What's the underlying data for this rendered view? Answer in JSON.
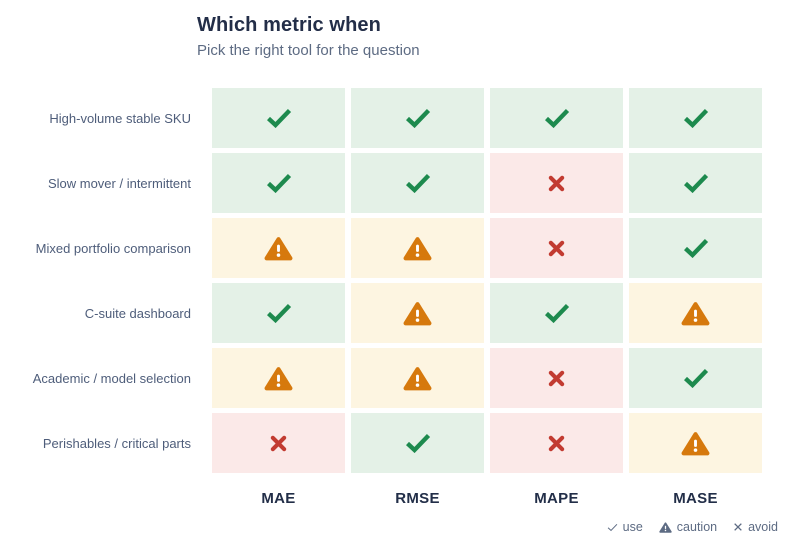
{
  "header": {
    "title": "Which metric when",
    "subtitle": "Pick the right tool for the question"
  },
  "chart_data": {
    "type": "heatmap",
    "title": "Which metric when",
    "subtitle": "Pick the right tool for the question",
    "columns": [
      "MAE",
      "RMSE",
      "MAPE",
      "MASE"
    ],
    "rows": [
      "High-volume stable SKU",
      "Slow mover / intermittent",
      "Mixed portfolio comparison",
      "C-suite dashboard",
      "Academic / model selection",
      "Perishables / critical parts"
    ],
    "values": [
      [
        "use",
        "use",
        "use",
        "use"
      ],
      [
        "use",
        "use",
        "avoid",
        "use"
      ],
      [
        "caution",
        "caution",
        "avoid",
        "use"
      ],
      [
        "use",
        "caution",
        "use",
        "caution"
      ],
      [
        "caution",
        "caution",
        "avoid",
        "use"
      ],
      [
        "avoid",
        "use",
        "avoid",
        "caution"
      ]
    ],
    "legend": [
      {
        "symbol": "check",
        "label": "use"
      },
      {
        "symbol": "triangle",
        "label": "caution"
      },
      {
        "symbol": "cross",
        "label": "avoid"
      }
    ],
    "legend_position": "bottom-right",
    "colors": {
      "use_bg": "#e4f1e7",
      "use_icon": "#1d8a4e",
      "caution_bg": "#fdf5e1",
      "caution_icon": "#d6790d",
      "avoid_bg": "#fbe9e8",
      "avoid_icon": "#c23b31",
      "title": "#232e48",
      "subtitle": "#5d6b83",
      "row_label": "#4e5d7a",
      "column_header": "#222e48",
      "legend_text": "#5d6b83"
    }
  }
}
